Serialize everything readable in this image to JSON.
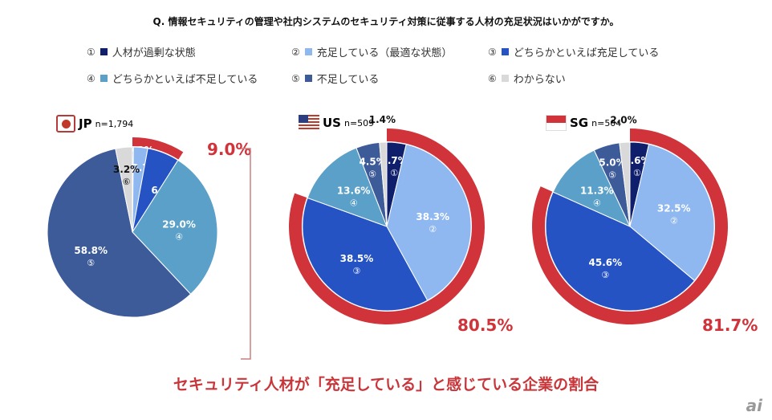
{
  "title": "Q. 情報セキュリティの管理や社内システムのセキュリティ対策に従事する人材の充足状況はいかがですか。",
  "legend": [
    {
      "num": "①",
      "label": "人材が過剰な状態",
      "color": "#0f1f6b"
    },
    {
      "num": "②",
      "label": "充足している（最適な状態）",
      "color": "#8fb8f0"
    },
    {
      "num": "③",
      "label": "どちらかといえば充足している",
      "color": "#2553c4"
    },
    {
      "num": "④",
      "label": "どちらかといえば不足している",
      "color": "#5aa0c8"
    },
    {
      "num": "⑤",
      "label": "不足している",
      "color": "#3d5a99"
    },
    {
      "num": "⑥",
      "label": "わからない",
      "color": "#d9d9d9"
    }
  ],
  "chart_data": [
    {
      "type": "pie",
      "country": "JP",
      "n": "n=1,794",
      "values": [
        0.2,
        2.7,
        6.1,
        29.0,
        58.8,
        3.2
      ],
      "sufficient_total": "9.0%"
    },
    {
      "type": "pie",
      "country": "US",
      "n": "n=509",
      "values": [
        3.7,
        38.3,
        38.5,
        13.6,
        4.5,
        1.4
      ],
      "sufficient_total": "80.5%"
    },
    {
      "type": "pie",
      "country": "SG",
      "n": "n=504",
      "values": [
        3.6,
        32.5,
        45.6,
        11.3,
        5.0,
        2.0
      ],
      "sufficient_total": "81.7%"
    }
  ],
  "accent": "#d0333a",
  "caption": "セキュリティ人材が「充足している」と感じている企業の割合",
  "logo": "ai"
}
